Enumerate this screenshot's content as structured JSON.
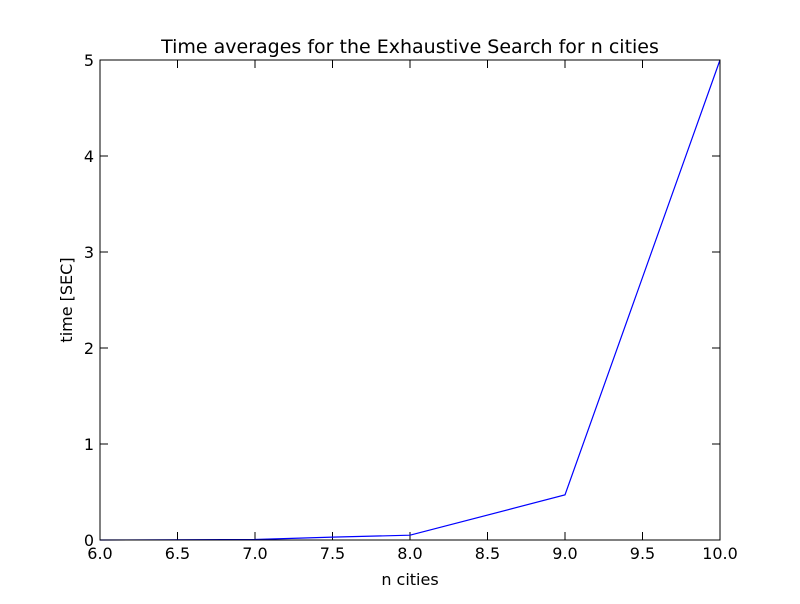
{
  "chart_data": {
    "type": "line",
    "title": "Time averages for the Exhaustive Search for n cities",
    "xlabel": "n cities",
    "ylabel": "time [SEC]",
    "xlim": [
      6.0,
      10.0
    ],
    "ylim": [
      0,
      5
    ],
    "x_ticks": [
      "6.0",
      "6.5",
      "7.0",
      "7.5",
      "8.0",
      "8.5",
      "9.0",
      "9.5",
      "10.0"
    ],
    "y_ticks": [
      "0",
      "1",
      "2",
      "3",
      "4",
      "5"
    ],
    "grid": false,
    "series": [
      {
        "color": "#0000ff",
        "x": [
          6,
          7,
          7.5,
          8,
          9,
          10
        ],
        "y": [
          0.0,
          0.005,
          0.03,
          0.05,
          0.47,
          5.0
        ]
      }
    ]
  }
}
